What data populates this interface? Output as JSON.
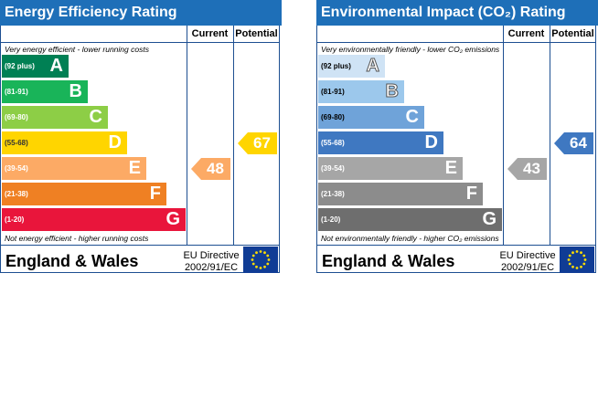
{
  "chart_data": [
    {
      "type": "bar",
      "title": "Energy Efficiency Rating",
      "columns": [
        "Current",
        "Potential"
      ],
      "top_note": "Very energy efficient - lower running costs",
      "bottom_note": "Not energy efficient - higher running costs",
      "bands": [
        {
          "range": "(92 plus)",
          "letter": "A",
          "color": "#008054"
        },
        {
          "range": "(81-91)",
          "letter": "B",
          "color": "#19b459"
        },
        {
          "range": "(69-80)",
          "letter": "C",
          "color": "#8dce46"
        },
        {
          "range": "(55-68)",
          "letter": "D",
          "color": "#ffd500"
        },
        {
          "range": "(39-54)",
          "letter": "E",
          "color": "#fcaa65"
        },
        {
          "range": "(21-38)",
          "letter": "F",
          "color": "#ef8023"
        },
        {
          "range": "(1-20)",
          "letter": "G",
          "color": "#e9153b"
        }
      ],
      "current": 48,
      "potential": 67,
      "current_color": "#fcaa65",
      "potential_color": "#ffd500",
      "region": "England & Wales",
      "directive": [
        "EU Directive",
        "2002/91/EC"
      ]
    },
    {
      "type": "bar",
      "title": "Environmental Impact (CO₂) Rating",
      "columns": [
        "Current",
        "Potential"
      ],
      "top_note": "Very environmentally friendly - lower CO₂ emissions",
      "bottom_note": "Not environmentally friendly - higher CO₂ emissions",
      "bands": [
        {
          "range": "(92 plus)",
          "letter": "A",
          "color": "#cfe3f5"
        },
        {
          "range": "(81-91)",
          "letter": "B",
          "color": "#9cc8ec"
        },
        {
          "range": "(69-80)",
          "letter": "C",
          "color": "#6fa3d9"
        },
        {
          "range": "(55-68)",
          "letter": "D",
          "color": "#3f78c1"
        },
        {
          "range": "(39-54)",
          "letter": "E",
          "color": "#a6a6a6"
        },
        {
          "range": "(21-38)",
          "letter": "F",
          "color": "#8c8c8c"
        },
        {
          "range": "(1-20)",
          "letter": "G",
          "color": "#6e6e6e"
        }
      ],
      "current": 43,
      "potential": 64,
      "current_color": "#a6a6a6",
      "potential_color": "#3f78c1",
      "region": "England & Wales",
      "directive": [
        "EU Directive",
        "2002/91/EC"
      ]
    }
  ]
}
